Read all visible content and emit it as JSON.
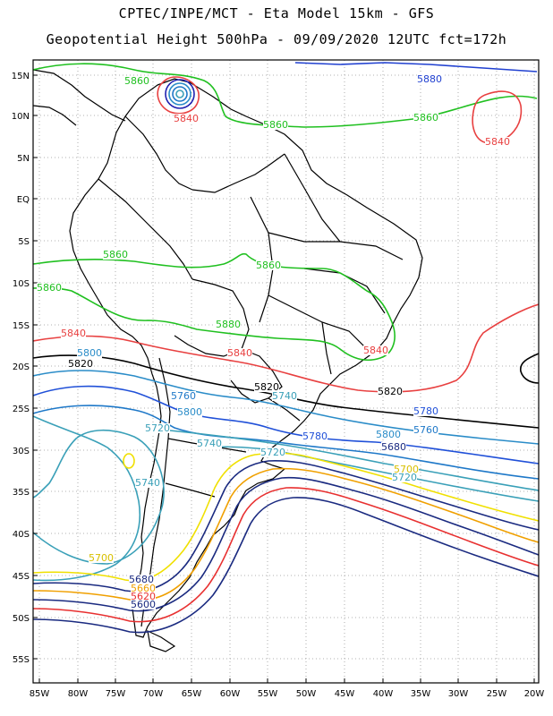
{
  "header": {
    "line1": "CPTEC/INPE/MCT -  Eta Model 15km - GFS",
    "line2": "Geopotential Height 500hPa - 09/09/2020 12UTC fct=172h"
  },
  "axes": {
    "lat_labels": [
      "15N",
      "10N",
      "5N",
      "EQ",
      "5S",
      "10S",
      "15S",
      "20S",
      "25S",
      "30S",
      "35S",
      "40S",
      "45S",
      "50S",
      "55S"
    ],
    "lon_labels": [
      "85W",
      "80W",
      "75W",
      "70W",
      "65W",
      "60W",
      "55W",
      "50W",
      "45W",
      "40W",
      "35W",
      "30W",
      "25W",
      "20W"
    ],
    "grid": "dotted"
  },
  "colors": {
    "c5700": "#f0e000",
    "c5720": "#3aa0b8",
    "c5740": "#3aa0b8",
    "c5760": "#1e78c8",
    "c5780": "#2050d8",
    "c5800": "#2a8cc8",
    "c5820": "#000000",
    "c5840": "#e84040",
    "c5860": "#20c020",
    "c5880": "#2020b0",
    "c5620": "#e83030",
    "c5640": "#e08020",
    "c5660": "#f0e000",
    "c5680": "#1a2a80",
    "border": "#000000"
  },
  "contour_labels": [
    {
      "text": "5860",
      "color": "#20c020"
    },
    {
      "text": "5880",
      "color": "#2040d0"
    },
    {
      "text": "5840",
      "color": "#e84040"
    },
    {
      "text": "5860",
      "color": "#20c020"
    },
    {
      "text": "5840",
      "color": "#e84040"
    },
    {
      "text": "5860",
      "color": "#20c020"
    },
    {
      "text": "5860",
      "color": "#20c020"
    },
    {
      "text": "5860",
      "color": "#20c020"
    },
    {
      "text": "5860",
      "color": "#20c020"
    },
    {
      "text": "5880",
      "color": "#20c020"
    },
    {
      "text": "5840",
      "color": "#e84040"
    },
    {
      "text": "5840",
      "color": "#e84040"
    },
    {
      "text": "5840",
      "color": "#e84040"
    },
    {
      "text": "5820",
      "color": "#000000"
    },
    {
      "text": "5800",
      "color": "#2a8cc8"
    },
    {
      "text": "5820",
      "color": "#000000"
    },
    {
      "text": "5820",
      "color": "#000000"
    },
    {
      "text": "5780",
      "color": "#2050d8"
    },
    {
      "text": "5760",
      "color": "#1e78c8"
    },
    {
      "text": "5800",
      "color": "#2a8cc8"
    },
    {
      "text": "5740",
      "color": "#3aa0b8"
    },
    {
      "text": "5720",
      "color": "#3aa0b8"
    },
    {
      "text": "5740",
      "color": "#3aa0b8"
    },
    {
      "text": "5780",
      "color": "#2050d8"
    },
    {
      "text": "5800",
      "color": "#2a8cc8"
    },
    {
      "text": "5760",
      "color": "#1e78c8"
    },
    {
      "text": "5680",
      "color": "#1a2a80"
    },
    {
      "text": "5720",
      "color": "#3aa0b8"
    },
    {
      "text": "5700",
      "color": "#d8c000"
    },
    {
      "text": "5720",
      "color": "#3aa0b8"
    },
    {
      "text": "5740",
      "color": "#3aa0b8"
    },
    {
      "text": "5700",
      "color": "#d8c000"
    },
    {
      "text": "5680",
      "color": "#1a2a80"
    },
    {
      "text": "5660",
      "color": "#f0a000"
    },
    {
      "text": "5620",
      "color": "#e83030"
    },
    {
      "text": "5600",
      "color": "#1a2a80"
    }
  ]
}
